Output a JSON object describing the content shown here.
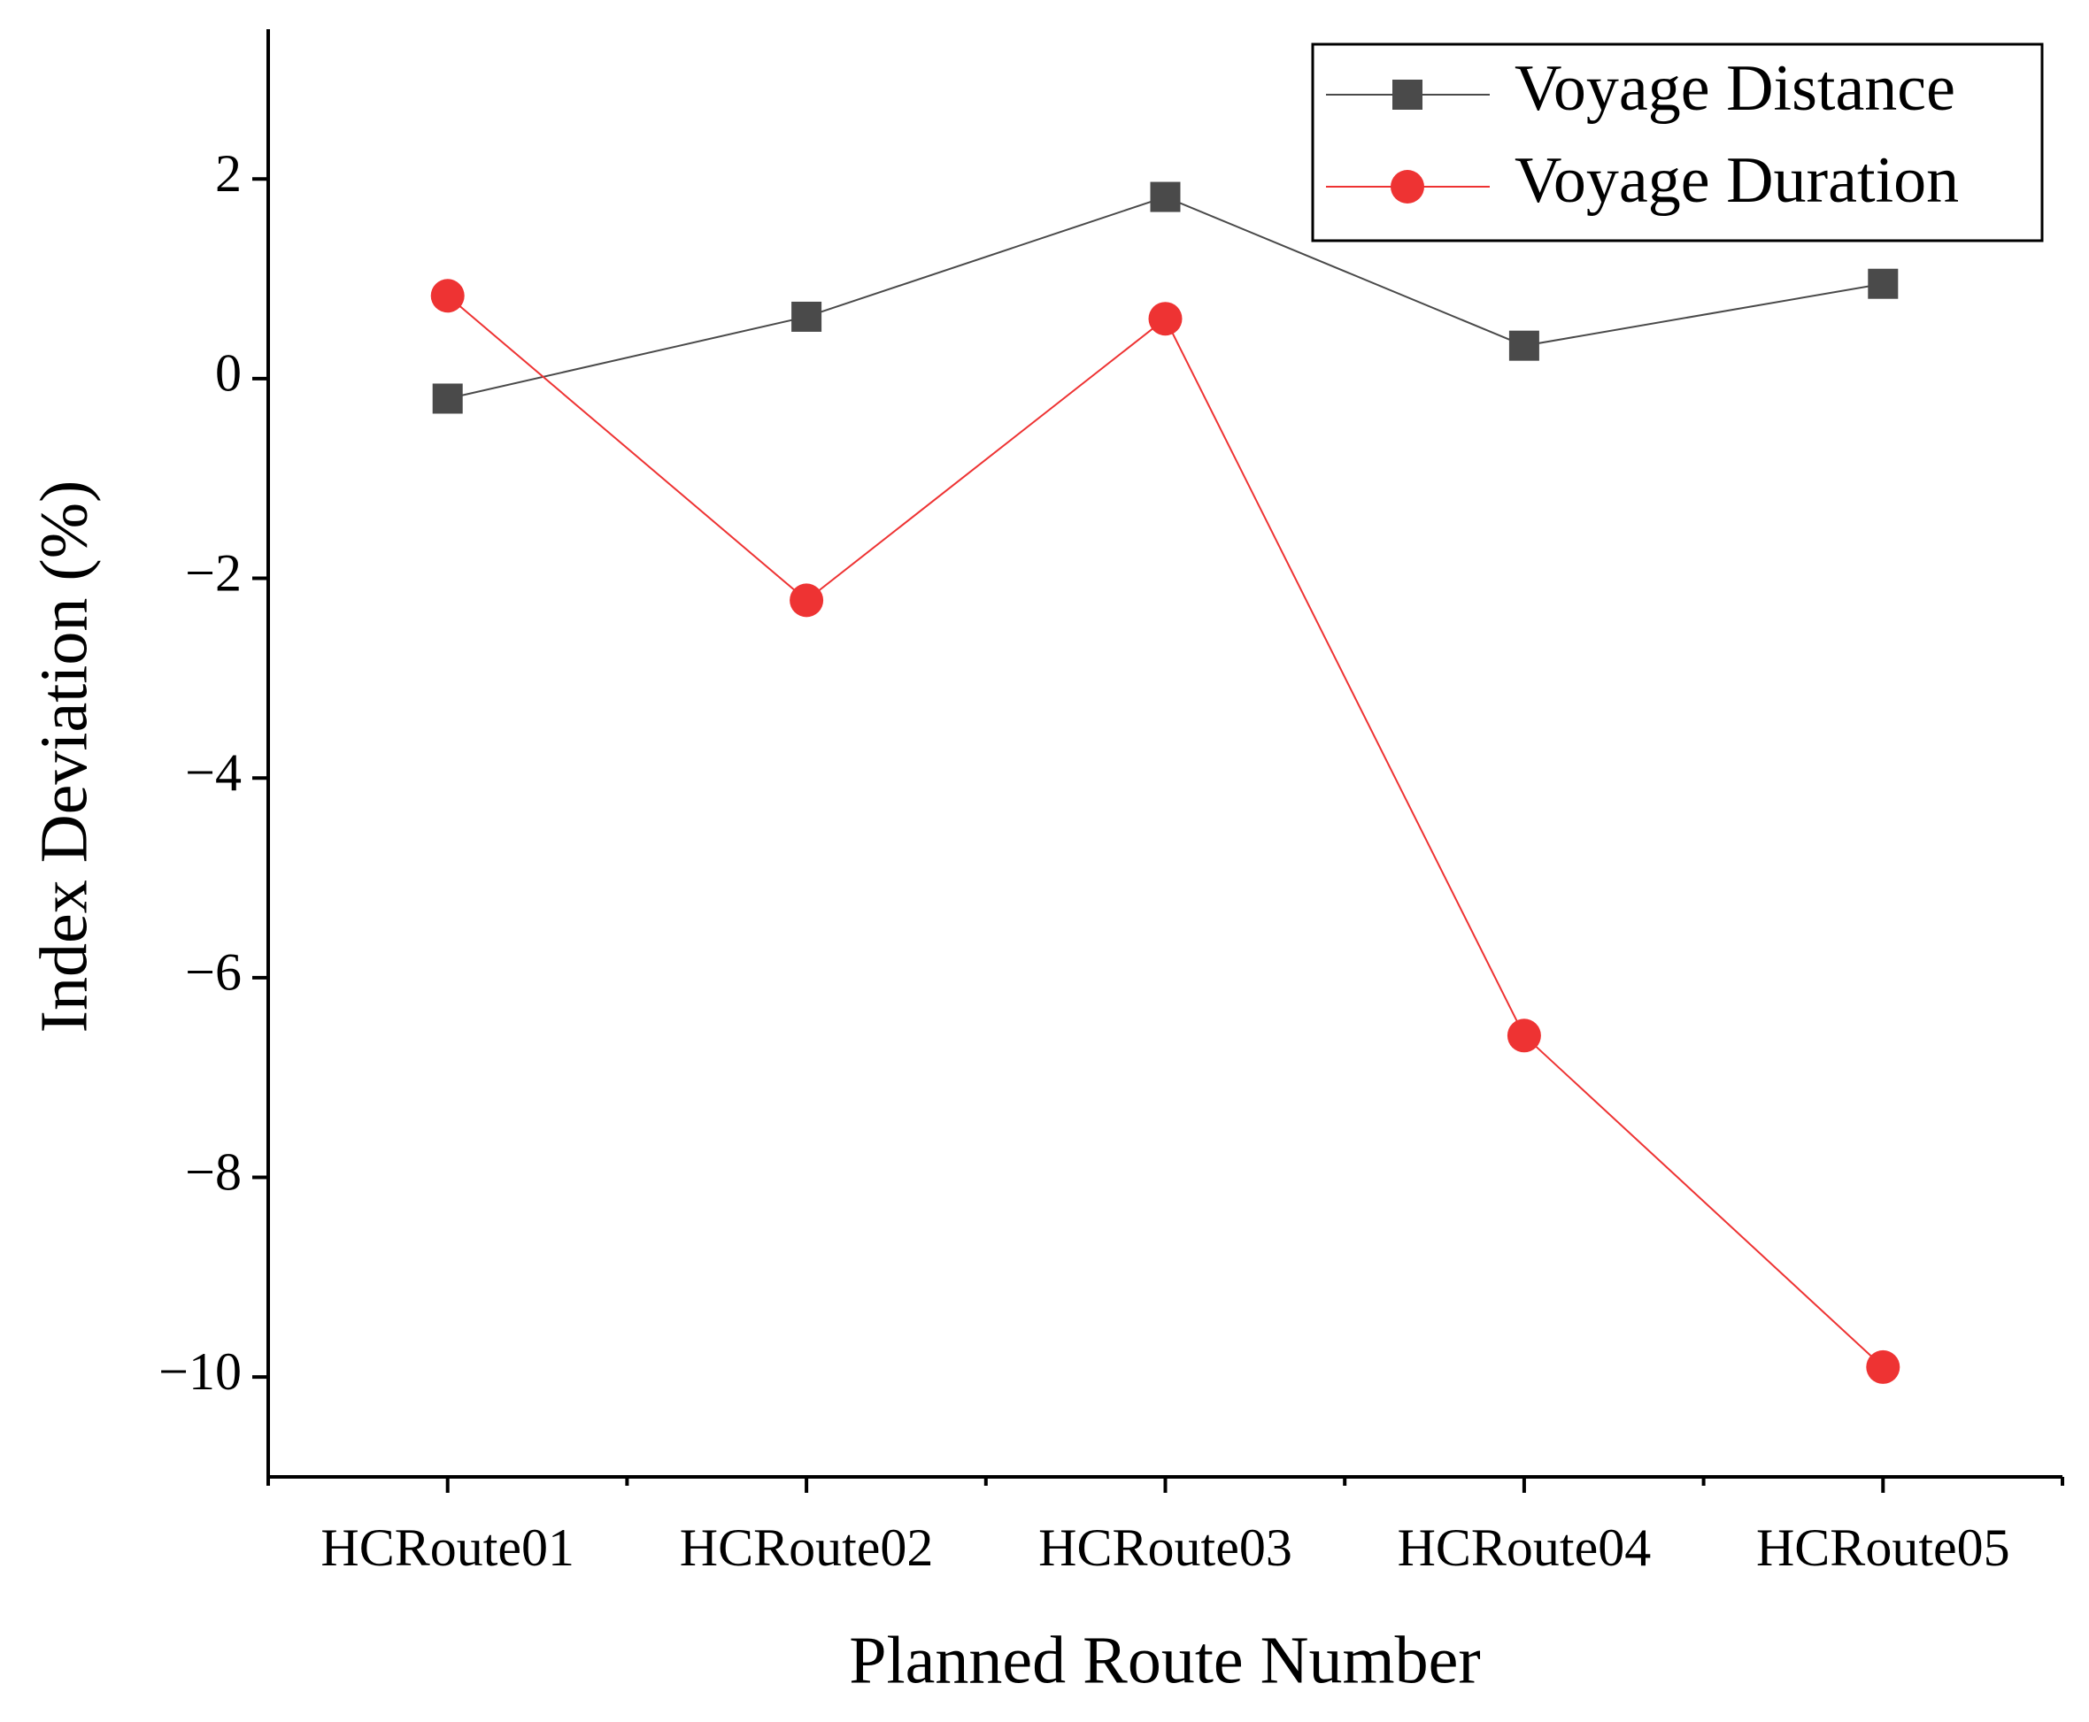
{
  "chart_data": {
    "type": "line",
    "x_label": "Planned Route Number",
    "y_label": "Index Deviation (%)",
    "categories": [
      "HCRoute01",
      "HCRoute02",
      "HCRoute03",
      "HCRoute04",
      "HCRoute05"
    ],
    "series": [
      {
        "name": "Voyage Distance",
        "color": "#4a4a4a",
        "marker": "square",
        "values": [
          -0.2,
          0.62,
          1.82,
          0.33,
          0.95
        ]
      },
      {
        "name": "Voyage Duration",
        "color": "#ee3333",
        "marker": "circle",
        "values": [
          0.83,
          -2.22,
          0.6,
          -6.58,
          -9.9
        ]
      }
    ],
    "ylim": [
      -11,
      3.5
    ],
    "yticks": [
      {
        "value": -10,
        "label": "−10"
      },
      {
        "value": -8,
        "label": "−8"
      },
      {
        "value": -6,
        "label": "−6"
      },
      {
        "value": -4,
        "label": "−4"
      },
      {
        "value": -2,
        "label": "−2"
      },
      0,
      2
    ],
    "legend": "upper right"
  }
}
